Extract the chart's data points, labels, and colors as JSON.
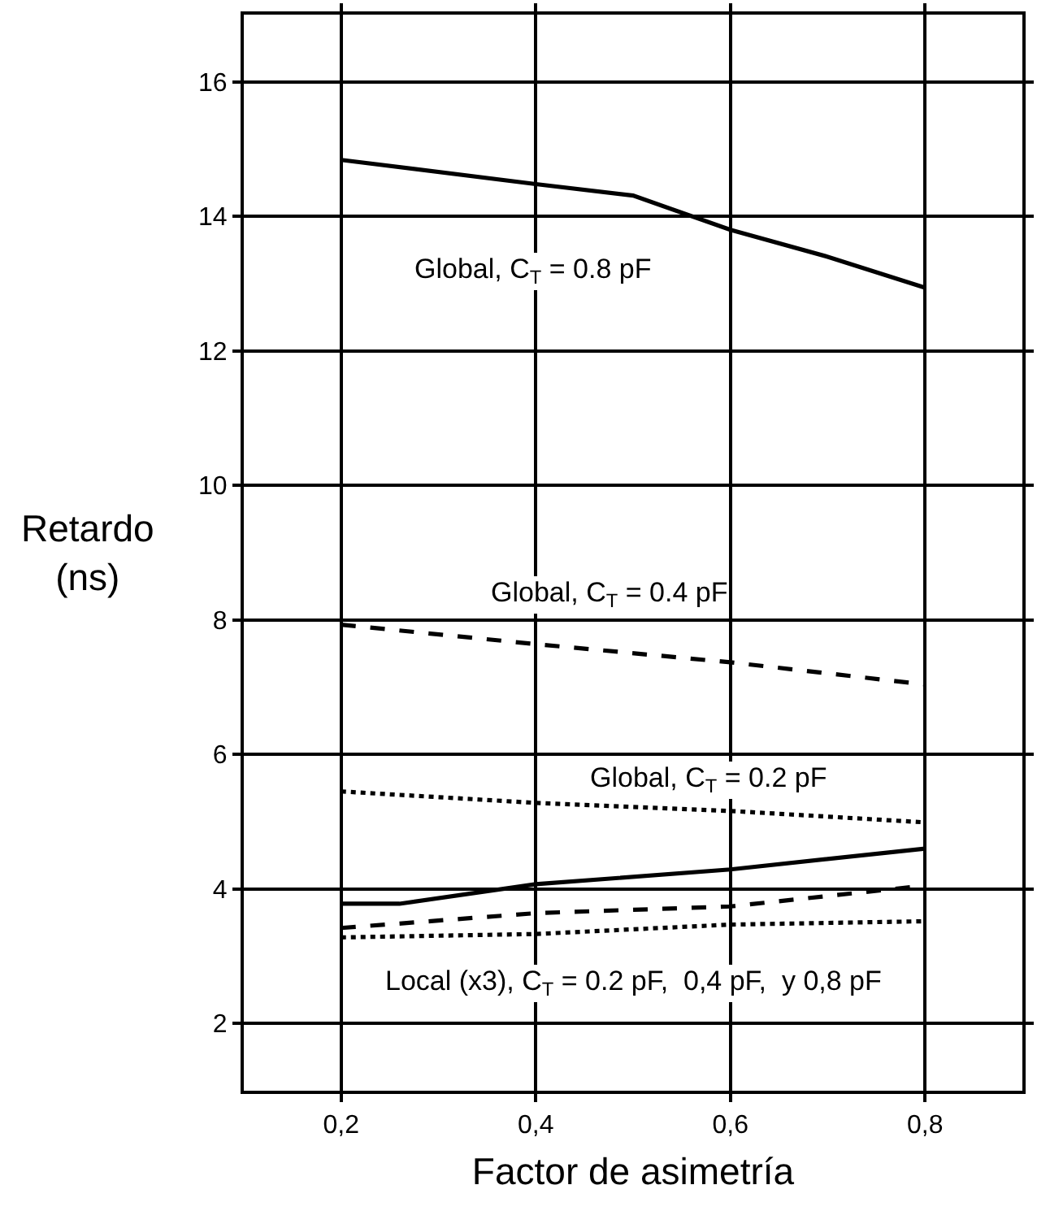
{
  "chart_data": {
    "type": "line",
    "xlabel": "Factor de asimetría",
    "ylabel": "Retardo\n(ns)",
    "xlim": [
      0.1,
      0.9
    ],
    "ylim": [
      1,
      17
    ],
    "xticks": [
      {
        "value": 0.2,
        "label": "0,2"
      },
      {
        "value": 0.4,
        "label": "0,4"
      },
      {
        "value": 0.6,
        "label": "0,6"
      },
      {
        "value": 0.8,
        "label": "0,8"
      }
    ],
    "yticks": [
      2,
      4,
      6,
      8,
      10,
      12,
      14,
      16
    ],
    "grid": true,
    "legend": false,
    "marker": "none",
    "series": [
      {
        "name": "Global, C$_{T}$ = 0.8 pF",
        "color": "#000000",
        "line_style": "solid",
        "x": [
          0.2,
          0.4,
          0.5,
          0.6,
          0.7,
          0.8
        ],
        "values": [
          14.84,
          14.48,
          14.31,
          13.8,
          13.4,
          12.94
        ]
      },
      {
        "name": "Global, C$_{T}$ = 0.4 pF",
        "color": "#000000",
        "line_style": "dashed",
        "x": [
          0.2,
          0.4,
          0.6,
          0.8
        ],
        "values": [
          7.93,
          7.64,
          7.37,
          7.04
        ]
      },
      {
        "name": "Global, C$_{T}$ = 0.2 pF",
        "color": "#000000",
        "line_style": "dotted",
        "x": [
          0.2,
          0.4,
          0.6,
          0.8
        ],
        "values": [
          5.45,
          5.28,
          5.16,
          4.99
        ]
      },
      {
        "color": "#000000",
        "line_style": "solid",
        "x": [
          0.2,
          0.26,
          0.4,
          0.6,
          0.8
        ],
        "values": [
          3.78,
          3.78,
          4.07,
          4.29,
          4.6
        ]
      },
      {
        "color": "#000000",
        "line_style": "dashed",
        "x": [
          0.2,
          0.4,
          0.6,
          0.8
        ],
        "values": [
          3.42,
          3.64,
          3.74,
          4.05
        ]
      },
      {
        "color": "#000000",
        "line_style": "dotted",
        "x": [
          0.2,
          0.4,
          0.6,
          0.8
        ],
        "values": [
          3.28,
          3.33,
          3.47,
          3.52
        ]
      }
    ],
    "annotations": [
      "Local (x3), C$_{T}$ = 0.2 pF,  0,4 pF,  y 0,8 pF"
    ]
  }
}
